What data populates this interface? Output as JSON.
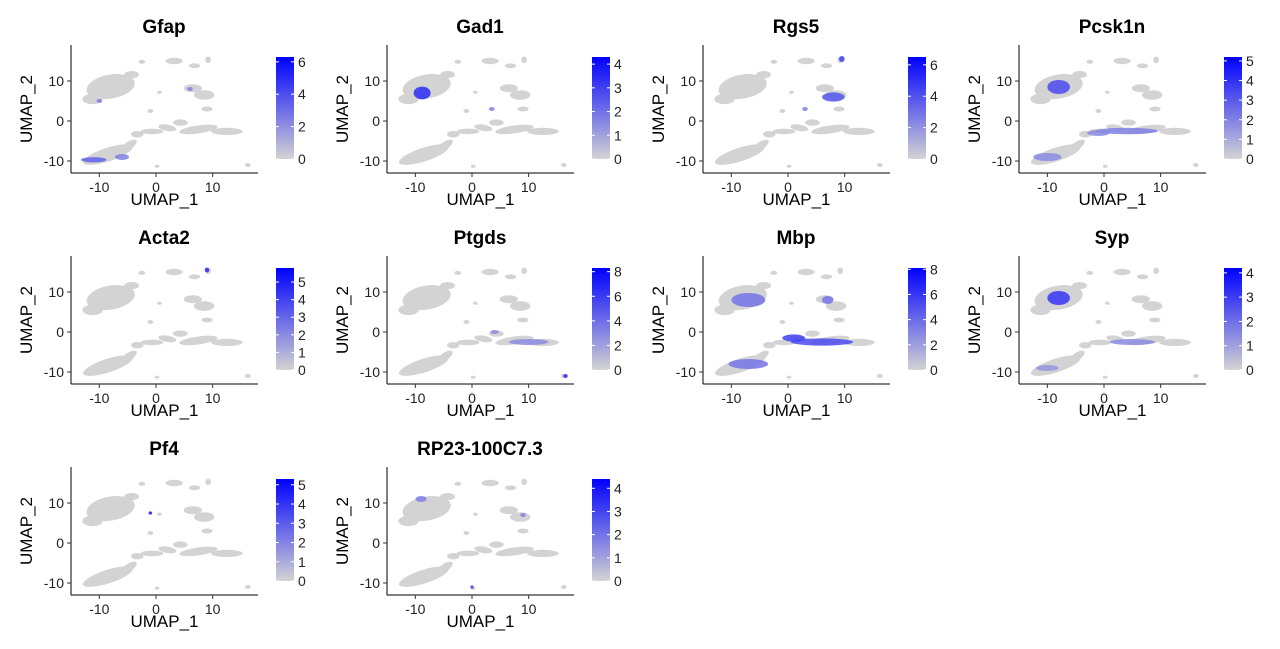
{
  "chart_data": {
    "type": "scatter",
    "layout": {
      "columns": 4,
      "rows": 3
    },
    "xlabel": "UMAP_1",
    "ylabel": "UMAP_2",
    "xlim": [
      -15,
      18
    ],
    "ylim": [
      -13,
      19
    ],
    "xticks": [
      -10,
      0,
      10
    ],
    "yticks": [
      -10,
      0,
      10
    ],
    "low_color": "#d3d3d3",
    "high_color": "#0000ff",
    "panels": [
      {
        "title": "Gfap",
        "colorbar": {
          "max": 6.3,
          "ticks": [
            0,
            2,
            4,
            6
          ]
        },
        "highlights": [
          {
            "x": -11,
            "y": -9.7,
            "w": 4.5,
            "h": 1.3,
            "v": 0.55
          },
          {
            "x": -6,
            "y": -9,
            "w": 2.5,
            "h": 1.5,
            "v": 0.4
          },
          {
            "x": -10,
            "y": 5,
            "w": 1,
            "h": 1,
            "v": 0.4
          },
          {
            "x": 6,
            "y": 8,
            "w": 1,
            "h": 1,
            "v": 0.4
          }
        ]
      },
      {
        "title": "Gad1",
        "colorbar": {
          "max": 4.3,
          "ticks": [
            0,
            1,
            2,
            3,
            4
          ]
        },
        "highlights": [
          {
            "x": -8.8,
            "y": 7,
            "w": 3,
            "h": 3.2,
            "v": 0.8
          },
          {
            "x": 3.5,
            "y": 3,
            "w": 1,
            "h": 1,
            "v": 0.4
          }
        ]
      },
      {
        "title": "Rgs5",
        "colorbar": {
          "max": 6.5,
          "ticks": [
            0,
            2,
            4,
            6
          ]
        },
        "highlights": [
          {
            "x": 8,
            "y": 6,
            "w": 4,
            "h": 2.3,
            "v": 0.6
          },
          {
            "x": 9.5,
            "y": 15.5,
            "w": 1,
            "h": 1.5,
            "v": 0.7
          },
          {
            "x": 3,
            "y": 3,
            "w": 1,
            "h": 1,
            "v": 0.4
          }
        ]
      },
      {
        "title": "Pcsk1n",
        "colorbar": {
          "max": 5.2,
          "ticks": [
            0,
            1,
            2,
            3,
            4,
            5
          ]
        },
        "highlights": [
          {
            "x": -8,
            "y": 8.5,
            "w": 4,
            "h": 3.5,
            "v": 0.65
          },
          {
            "x": -10,
            "y": -9,
            "w": 5,
            "h": 2,
            "v": 0.35
          },
          {
            "x": 4,
            "y": -2.5,
            "w": 11,
            "h": 1.6,
            "v": 0.4
          },
          {
            "x": -1,
            "y": -3,
            "w": 4,
            "h": 1.5,
            "v": 0.35
          }
        ]
      },
      {
        "title": "Acta2",
        "colorbar": {
          "max": 5.8,
          "ticks": [
            0,
            1,
            2,
            3,
            4,
            5
          ]
        },
        "highlights": [
          {
            "x": 9,
            "y": 15.5,
            "w": 0.8,
            "h": 1.2,
            "v": 0.8
          }
        ]
      },
      {
        "title": "Ptgds",
        "colorbar": {
          "max": 8.3,
          "ticks": [
            0,
            2,
            4,
            6,
            8
          ]
        },
        "highlights": [
          {
            "x": 10,
            "y": -2.5,
            "w": 7,
            "h": 1.5,
            "v": 0.35
          },
          {
            "x": 16.5,
            "y": -11,
            "w": 0.8,
            "h": 1,
            "v": 0.8
          },
          {
            "x": 4,
            "y": 0,
            "w": 1.5,
            "h": 1,
            "v": 0.35
          }
        ]
      },
      {
        "title": "Mbp",
        "colorbar": {
          "max": 8.1,
          "ticks": [
            0,
            2,
            4,
            6,
            8
          ]
        },
        "highlights": [
          {
            "x": 6,
            "y": -2.5,
            "w": 11,
            "h": 1.8,
            "v": 0.65
          },
          {
            "x": -7,
            "y": 8,
            "w": 6,
            "h": 3.5,
            "v": 0.45
          },
          {
            "x": -7,
            "y": -8,
            "w": 7,
            "h": 2.5,
            "v": 0.45
          },
          {
            "x": 1,
            "y": -1.5,
            "w": 4,
            "h": 1.8,
            "v": 0.7
          },
          {
            "x": 7,
            "y": 8,
            "w": 2,
            "h": 2,
            "v": 0.45
          }
        ]
      },
      {
        "title": "Syp",
        "colorbar": {
          "max": 4.2,
          "ticks": [
            0,
            1,
            2,
            3,
            4
          ]
        },
        "highlights": [
          {
            "x": -8,
            "y": 8.5,
            "w": 4,
            "h": 3.5,
            "v": 0.75
          },
          {
            "x": 5,
            "y": -2.5,
            "w": 8,
            "h": 1.5,
            "v": 0.35
          },
          {
            "x": -10,
            "y": -9,
            "w": 4,
            "h": 1.5,
            "v": 0.3
          }
        ]
      },
      {
        "title": "Pf4",
        "colorbar": {
          "max": 5.3,
          "ticks": [
            0,
            1,
            2,
            3,
            4,
            5
          ]
        },
        "highlights": [
          {
            "x": -1,
            "y": 7.5,
            "w": 0.6,
            "h": 0.8,
            "v": 0.9
          }
        ]
      },
      {
        "title": "RP23-100C7.3",
        "colorbar": {
          "max": 4.4,
          "ticks": [
            0,
            1,
            2,
            3,
            4
          ]
        },
        "highlights": [
          {
            "x": -9,
            "y": 11,
            "w": 2,
            "h": 1.5,
            "v": 0.4
          },
          {
            "x": 0,
            "y": -11,
            "w": 0.6,
            "h": 0.8,
            "v": 0.7
          },
          {
            "x": 9,
            "y": 7,
            "w": 1,
            "h": 1,
            "v": 0.4
          }
        ]
      }
    ]
  }
}
